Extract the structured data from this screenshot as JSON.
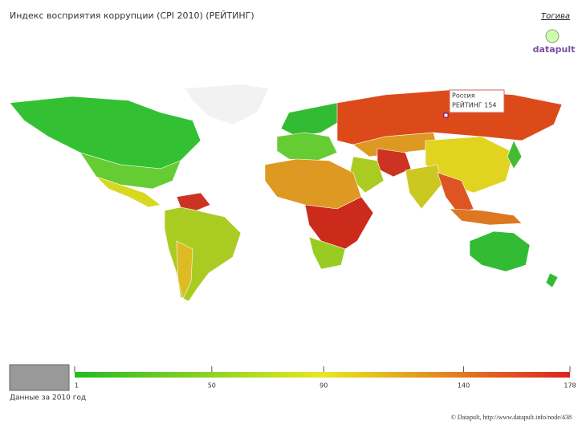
{
  "header": {
    "title": "Индекс восприятия коррупции (CPI 2010) (РЕЙТИНГ)",
    "link": "Тогива",
    "logo": "datapult"
  },
  "map": {
    "tooltip": {
      "country": "Россия",
      "label": "РЕЙТИНГ 154"
    }
  },
  "legend": {
    "range": [
      1,
      178
    ],
    "ticks": [
      1,
      50,
      90,
      140,
      178
    ],
    "colors": [
      "#22bb22",
      "#e8e820",
      "#dd2222"
    ]
  },
  "footer": {
    "data_note": "Данные за 2010 год",
    "credit": "© Datapult, http://www.datapult.info/node/438"
  }
}
